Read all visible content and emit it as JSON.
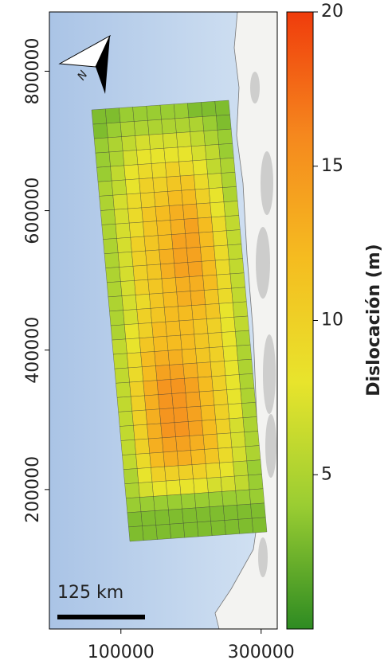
{
  "chart_data": {
    "type": "heatmap",
    "xlim": [
      -2000,
      323000
    ],
    "xticks": [
      100000,
      300000
    ],
    "ylim": [
      0,
      885000
    ],
    "yticks": [
      200000,
      400000,
      600000,
      800000
    ],
    "north_label": "N",
    "scale_bar_label": "125 km",
    "colorbar": {
      "label": "Dislocación (m)",
      "clim": [
        0,
        20
      ],
      "ticks": [
        5,
        10,
        15,
        20
      ],
      "colormap": [
        "#2e8b22",
        "#9acd32",
        "#e8e42c",
        "#f5bc20",
        "#f5881e",
        "#f03c0c"
      ]
    },
    "values": [
      [
        3,
        3,
        4,
        4,
        4,
        4,
        4,
        3,
        3,
        3
      ],
      [
        3,
        4,
        5,
        5,
        5,
        5,
        5,
        5,
        4,
        3
      ],
      [
        4,
        5,
        6,
        7,
        7,
        7,
        7,
        6,
        5,
        4
      ],
      [
        4,
        5,
        7,
        8,
        8,
        8,
        8,
        7,
        6,
        4
      ],
      [
        4,
        6,
        8,
        9,
        9,
        10,
        9,
        8,
        6,
        5
      ],
      [
        5,
        6,
        8,
        10,
        10,
        11,
        11,
        9,
        7,
        5
      ],
      [
        5,
        7,
        9,
        10,
        11,
        12,
        12,
        10,
        8,
        5
      ],
      [
        5,
        7,
        9,
        11,
        12,
        13,
        13,
        11,
        8,
        6
      ],
      [
        5,
        7,
        9,
        11,
        12,
        13,
        14,
        12,
        9,
        6
      ],
      [
        5,
        7,
        10,
        11,
        12,
        14,
        14,
        12,
        9,
        6
      ],
      [
        5,
        7,
        10,
        11,
        13,
        14,
        14,
        12,
        9,
        6
      ],
      [
        5,
        7,
        10,
        11,
        13,
        14,
        14,
        12,
        9,
        6
      ],
      [
        5,
        7,
        10,
        11,
        12,
        13,
        13,
        12,
        9,
        6
      ],
      [
        5,
        7,
        9,
        11,
        12,
        13,
        13,
        11,
        9,
        6
      ],
      [
        5,
        7,
        10,
        11,
        12,
        12,
        12,
        11,
        8,
        6
      ],
      [
        5,
        8,
        10,
        12,
        12,
        12,
        11,
        10,
        8,
        6
      ],
      [
        6,
        8,
        11,
        12,
        12,
        12,
        11,
        10,
        8,
        5
      ],
      [
        6,
        9,
        12,
        13,
        13,
        12,
        11,
        10,
        8,
        5
      ],
      [
        6,
        9,
        12,
        14,
        14,
        13,
        12,
        10,
        8,
        5
      ],
      [
        6,
        10,
        13,
        15,
        15,
        14,
        12,
        10,
        8,
        5
      ],
      [
        6,
        10,
        13,
        15,
        15,
        14,
        12,
        10,
        8,
        5
      ],
      [
        6,
        10,
        13,
        15,
        15,
        14,
        12,
        10,
        8,
        5
      ],
      [
        6,
        10,
        13,
        15,
        15,
        14,
        12,
        10,
        7,
        5
      ],
      [
        6,
        10,
        13,
        14,
        14,
        13,
        12,
        9,
        7,
        5
      ],
      [
        6,
        9,
        12,
        13,
        13,
        12,
        11,
        9,
        7,
        5
      ],
      [
        5,
        8,
        10,
        10,
        10,
        10,
        9,
        8,
        6,
        4
      ],
      [
        5,
        7,
        8,
        8,
        8,
        8,
        7,
        7,
        6,
        4
      ],
      [
        4,
        4,
        4,
        4,
        4,
        4,
        4,
        4,
        4,
        4
      ],
      [
        3,
        3,
        3,
        3,
        3,
        3,
        3,
        3,
        3,
        3
      ],
      [
        3,
        3,
        3,
        3,
        3,
        3,
        3,
        3,
        3,
        3
      ]
    ]
  }
}
